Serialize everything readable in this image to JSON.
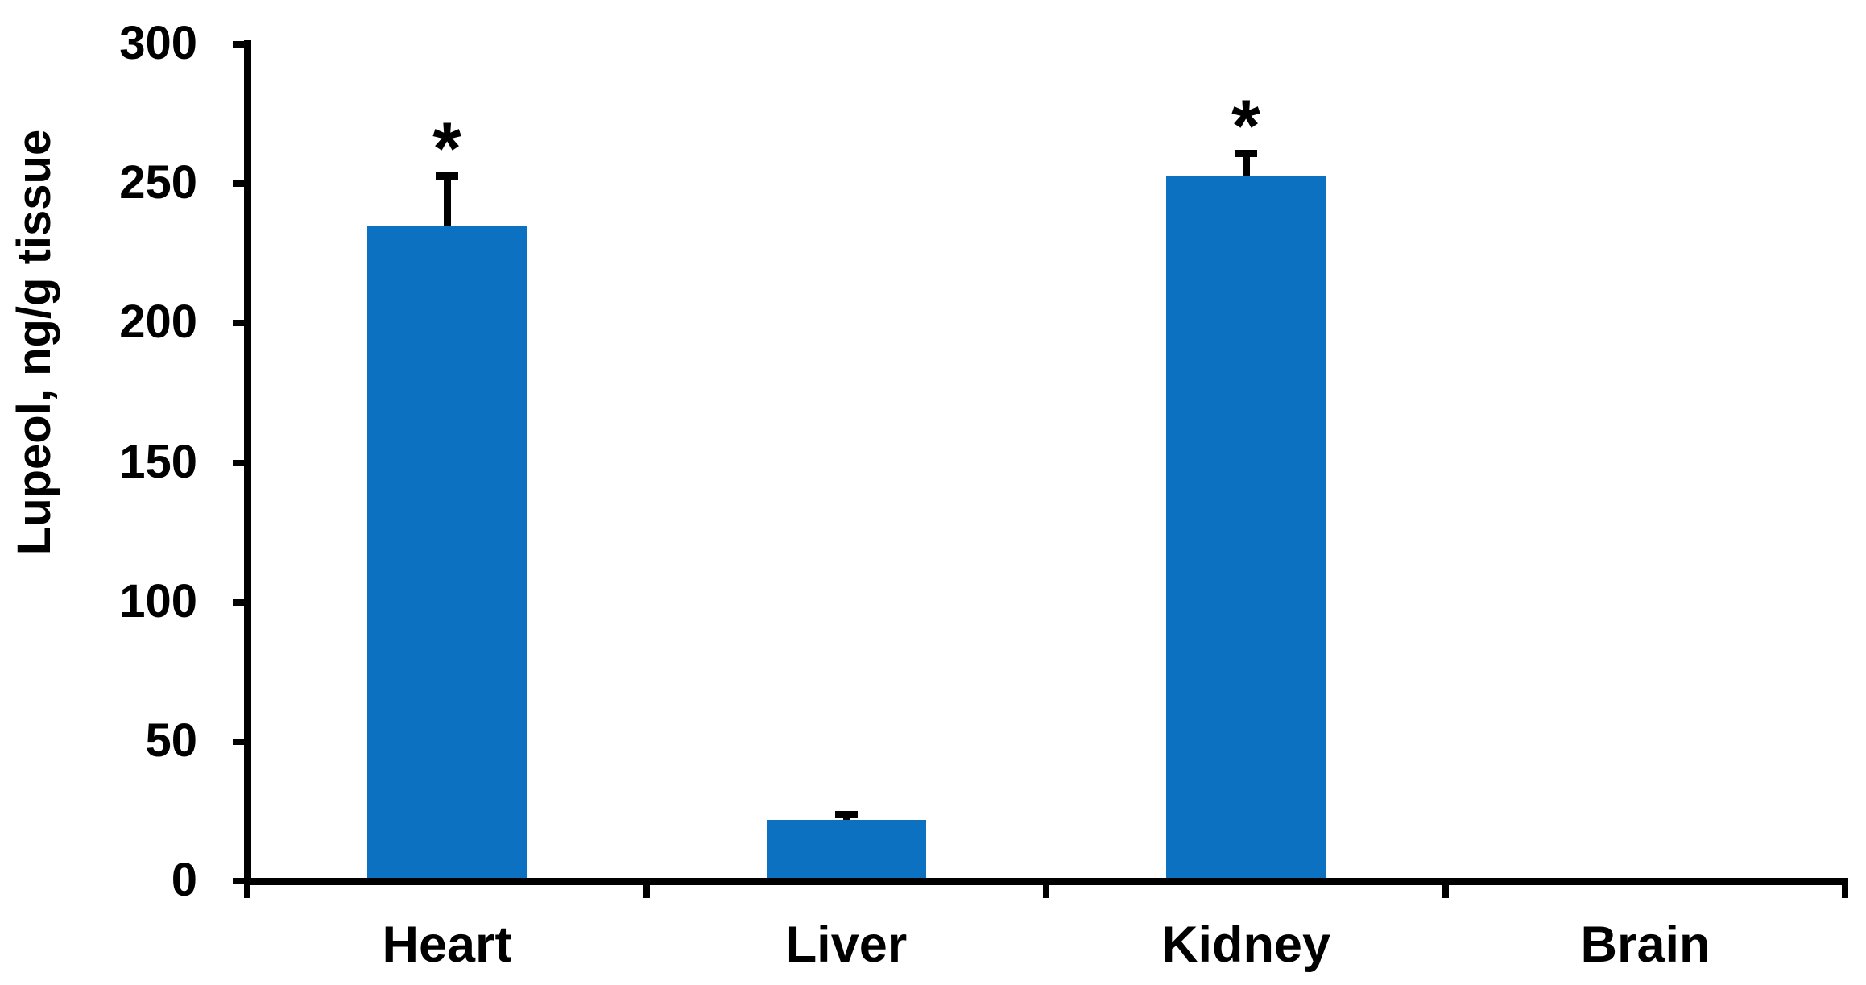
{
  "chart_data": {
    "type": "bar",
    "title": "",
    "ylabel": "Lupeol, ng/g tissue",
    "xlabel": "",
    "categories": [
      "Heart",
      "Liver",
      "Kidney",
      "Brain"
    ],
    "values": [
      235,
      22,
      253,
      0
    ],
    "errors_plus": [
      18,
      2,
      8,
      0
    ],
    "significance": [
      "*",
      "",
      "*",
      ""
    ],
    "ylim": [
      0,
      300
    ],
    "yticks": [
      0,
      50,
      100,
      150,
      200,
      250,
      300
    ],
    "bar_color": "#0b71c0",
    "axis_color": "#000000",
    "grid": false,
    "legend": false
  }
}
